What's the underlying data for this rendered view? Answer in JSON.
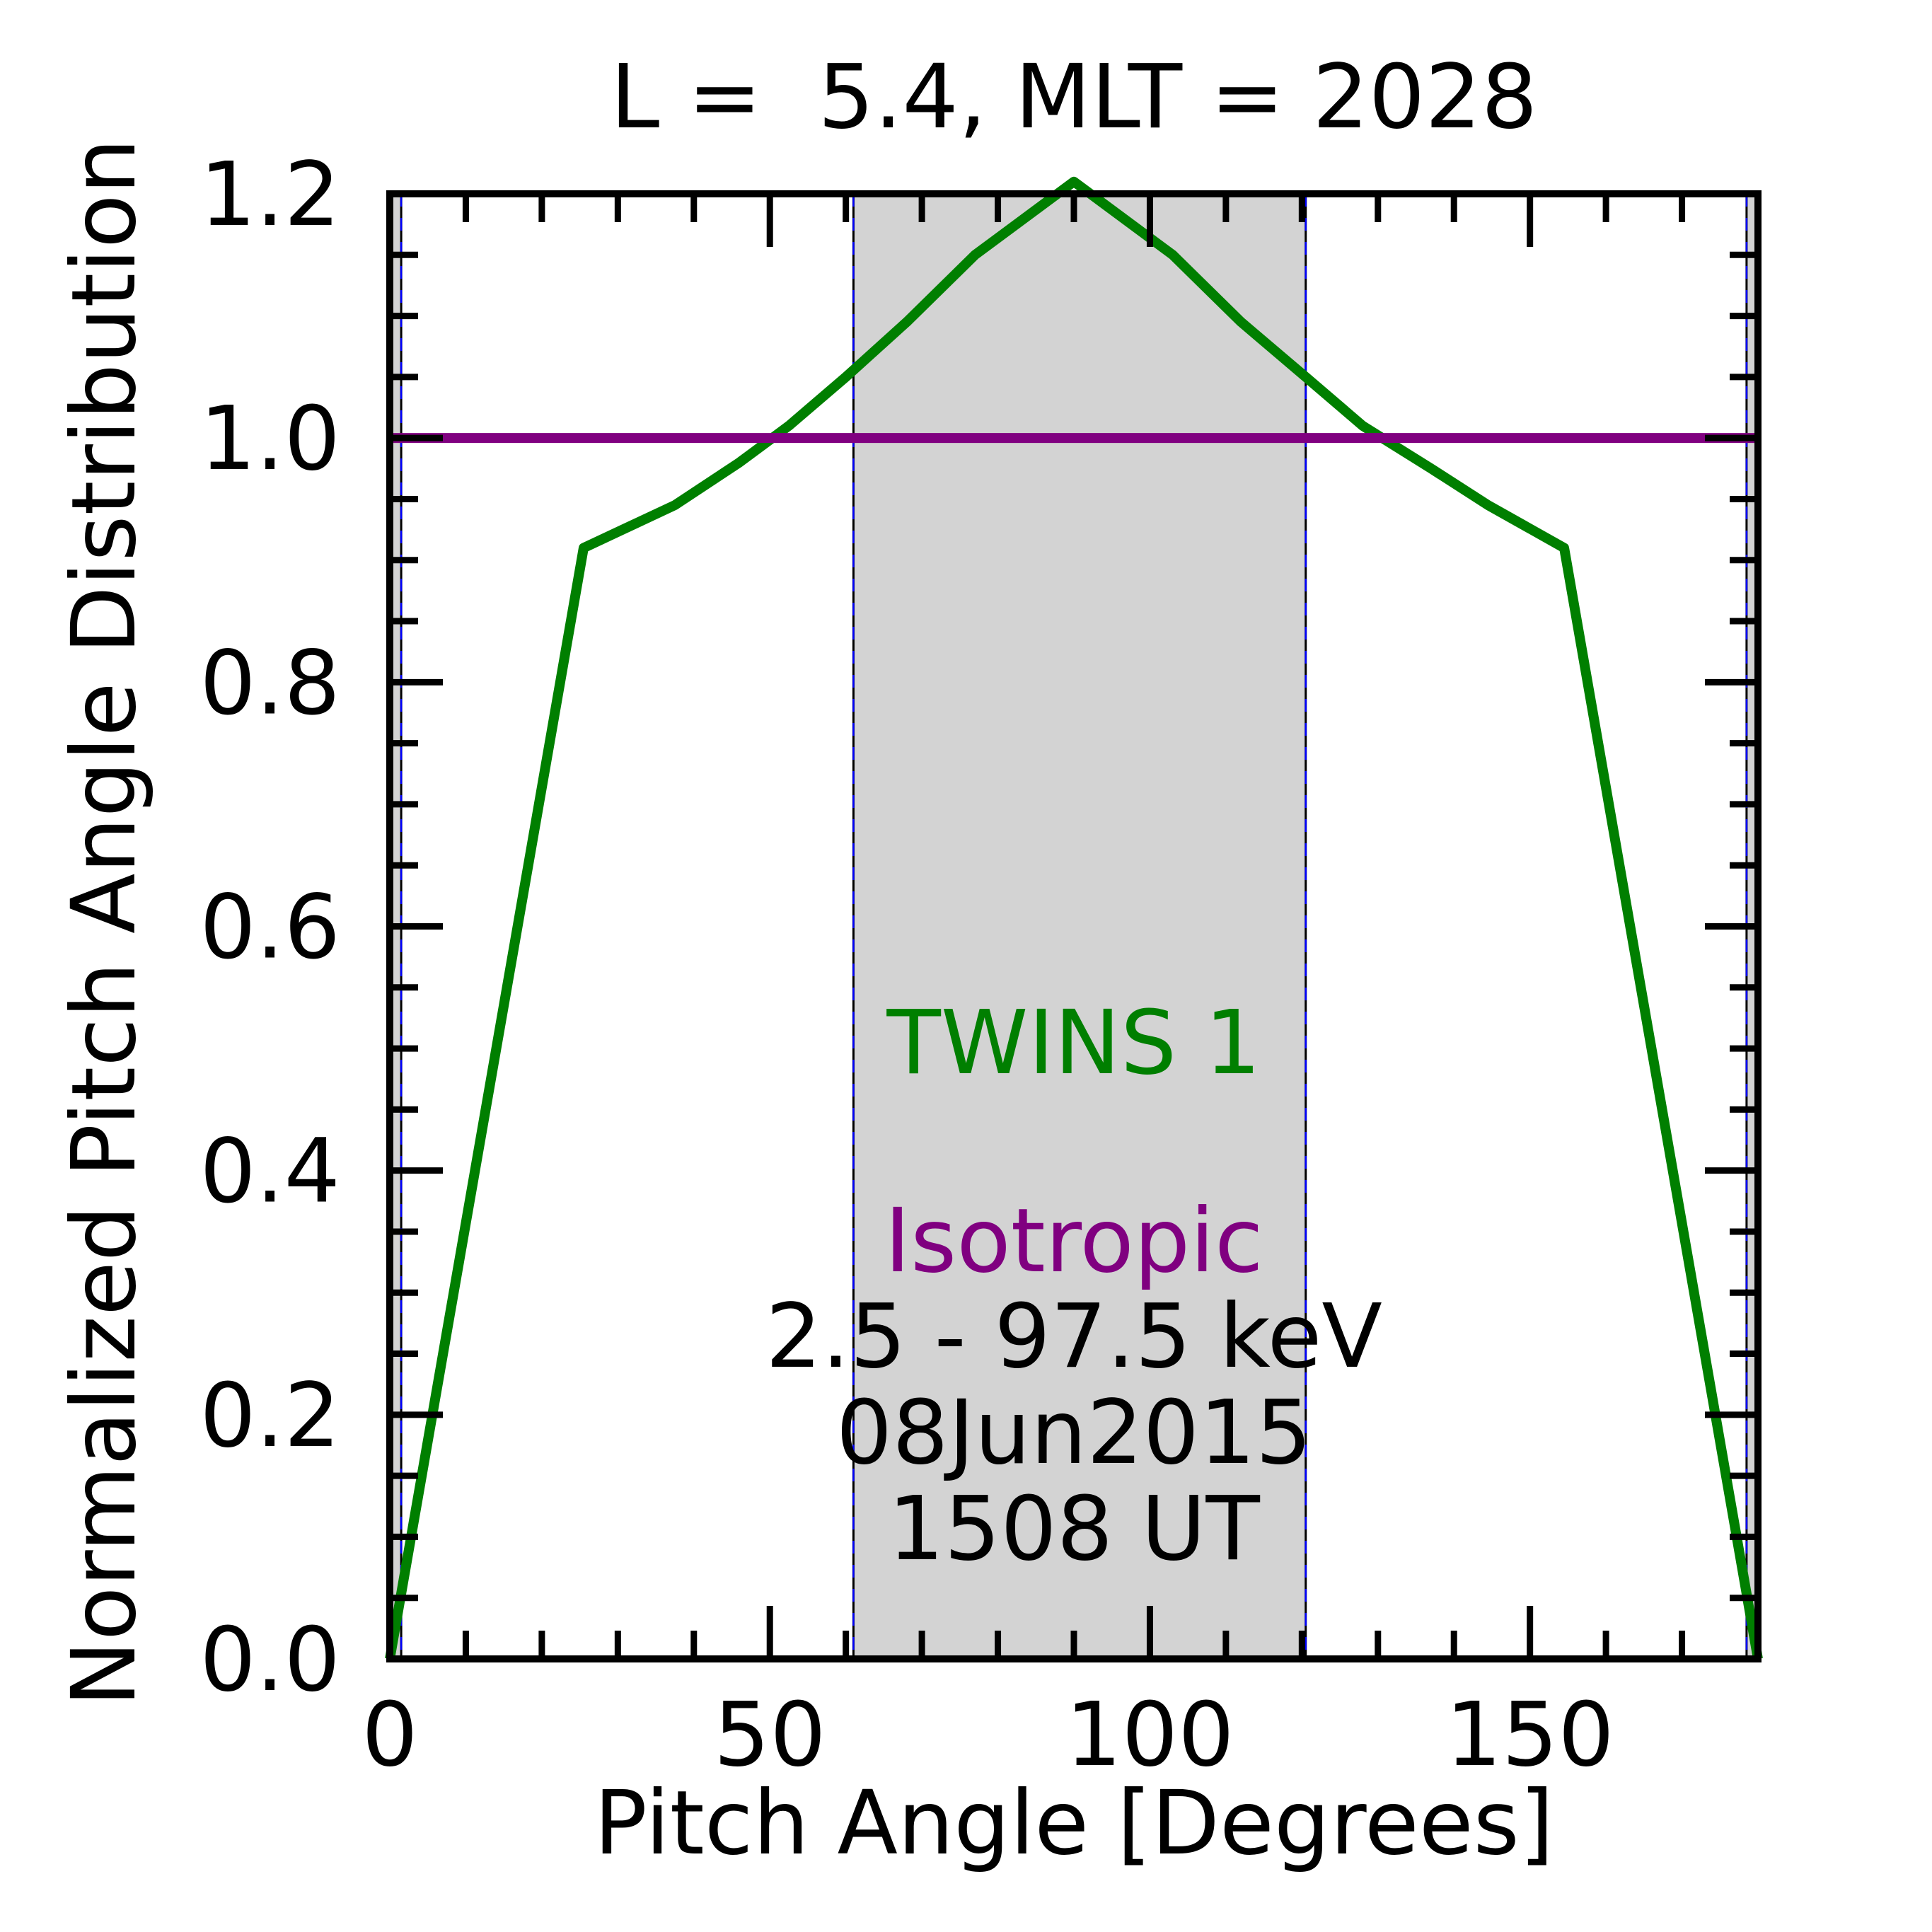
{
  "chart_data": {
    "type": "line",
    "title": "L =  5.4, MLT = 2028",
    "xlabel": "Pitch Angle [Degrees]",
    "ylabel": "Normalized Pitch Angle Distribution",
    "xlim": [
      0,
      180
    ],
    "ylim": [
      0,
      1.2
    ],
    "x_ticks": [
      0,
      50,
      100,
      150
    ],
    "x_tick_labels": [
      "0",
      "50",
      "100",
      "150"
    ],
    "y_ticks": [
      0.0,
      0.2,
      0.4,
      0.6,
      0.8,
      1.0,
      1.2
    ],
    "y_tick_labels": [
      "0.0",
      "0.2",
      "0.4",
      "0.6",
      "0.8",
      "1.0",
      "1.2"
    ],
    "grid": false,
    "shaded_regions": [
      {
        "x": [
          0,
          1.5
        ],
        "color": "#d3d3d3"
      },
      {
        "x": [
          61,
          120.5
        ],
        "color": "#d3d3d3"
      },
      {
        "x": [
          178.5,
          180
        ],
        "color": "#d3d3d3"
      }
    ],
    "vertical_lines": [
      1.5,
      61,
      120.5,
      178.5
    ],
    "series": [
      {
        "name": "TWINS 1",
        "color": "#007f00",
        "x": [
          0,
          25.5,
          37.5,
          46,
          52.5,
          60,
          68,
          77,
          90,
          103,
          112,
          120.5,
          128,
          137,
          144.5,
          154.5,
          180
        ],
        "y": [
          0.0,
          0.91,
          0.945,
          0.98,
          1.01,
          1.05,
          1.095,
          1.15,
          1.21,
          1.15,
          1.095,
          1.05,
          1.01,
          0.975,
          0.945,
          0.91,
          0.0
        ]
      },
      {
        "name": "Isotropic",
        "color": "#800080",
        "x": [
          0,
          180
        ],
        "y": [
          1.0,
          1.0
        ]
      }
    ],
    "annotations": {
      "twins_label": {
        "text": "TWINS 1",
        "color": "#007f00"
      },
      "isotropic_label": {
        "text": "Isotropic",
        "color": "#800080"
      },
      "energy": "2.5 - 97.5 keV",
      "date": "08Jun2015",
      "time": "1508 UT"
    }
  }
}
